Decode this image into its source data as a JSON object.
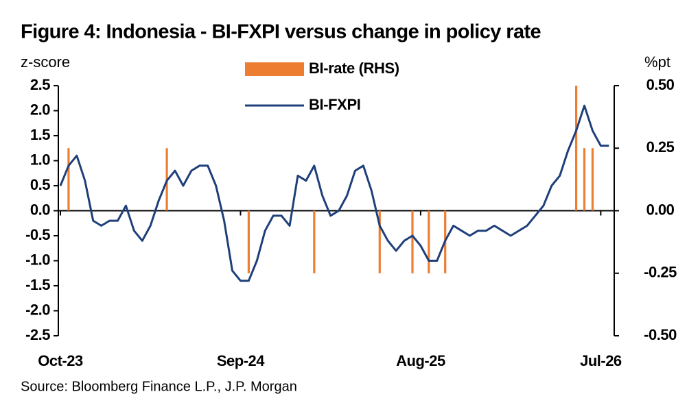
{
  "chart_data": {
    "type": "bar-line",
    "title": "Figure 4: Indonesia - BI-FXPI versus change in policy rate",
    "y_label": "z-score",
    "y2_label": "%pt",
    "source": "Source: Bloomberg Finance L.P., J.P. Morgan",
    "categories": [
      "Oct-23",
      null,
      null,
      null,
      null,
      null,
      null,
      null,
      null,
      null,
      null,
      null,
      null,
      null,
      null,
      null,
      null,
      null,
      null,
      null,
      null,
      null,
      "Sep-24",
      null,
      null,
      null,
      null,
      null,
      null,
      null,
      null,
      null,
      null,
      null,
      null,
      null,
      null,
      null,
      null,
      null,
      null,
      null,
      null,
      null,
      "Aug-25",
      null,
      null,
      null,
      null,
      null,
      null,
      null,
      null,
      null,
      null,
      null,
      null,
      null,
      null,
      null,
      null,
      null,
      null,
      null,
      null,
      null,
      "Jul-26",
      null
    ],
    "series": [
      {
        "name": "BI-rate (RHS)",
        "type": "bar",
        "axis": "y2",
        "color": "#ed7d31",
        "values": [
          null,
          0.25,
          null,
          null,
          null,
          null,
          null,
          null,
          null,
          null,
          null,
          null,
          null,
          0.25,
          null,
          null,
          null,
          null,
          null,
          null,
          null,
          null,
          null,
          -0.25,
          null,
          null,
          null,
          null,
          null,
          null,
          null,
          -0.25,
          null,
          null,
          null,
          null,
          null,
          null,
          null,
          -0.25,
          null,
          null,
          null,
          -0.25,
          null,
          -0.25,
          null,
          -0.25,
          null,
          null,
          null,
          null,
          null,
          null,
          null,
          null,
          null,
          null,
          null,
          null,
          null,
          null,
          null,
          0.5,
          0.25,
          0.25,
          null,
          null
        ]
      },
      {
        "name": "BI-FXPI",
        "type": "line",
        "color": "#1f3f7a",
        "values": [
          0.5,
          0.9,
          1.1,
          0.6,
          -0.2,
          -0.3,
          -0.2,
          -0.2,
          0.1,
          -0.4,
          -0.6,
          -0.3,
          0.2,
          0.6,
          0.8,
          0.5,
          0.8,
          0.9,
          0.9,
          0.5,
          -0.2,
          -1.2,
          -1.4,
          -1.4,
          -1.0,
          -0.4,
          -0.1,
          -0.1,
          -0.3,
          0.7,
          0.6,
          0.9,
          0.3,
          -0.1,
          0.0,
          0.3,
          0.8,
          0.9,
          0.4,
          -0.3,
          -0.6,
          -0.8,
          -0.6,
          -0.5,
          -0.7,
          -1.0,
          -1.0,
          -0.6,
          -0.3,
          -0.4,
          -0.5,
          -0.4,
          -0.4,
          -0.3,
          -0.4,
          -0.5,
          -0.4,
          -0.3,
          -0.1,
          0.1,
          0.5,
          0.7,
          1.2,
          1.6,
          2.1,
          1.6,
          1.3,
          1.3
        ]
      }
    ],
    "ylim": [
      -2.5,
      2.5
    ],
    "yticks": [
      2.5,
      {
        "value": 2.0,
        "label": "2.0"
      },
      1.5,
      {
        "value": 1.0,
        "label": "1.0"
      },
      0.5,
      {
        "value": 0.0,
        "label": "0.0"
      },
      -0.5,
      {
        "value": -1.0,
        "label": "-1.0"
      },
      -1.5,
      {
        "value": -2.0,
        "label": "-2.0"
      },
      -2.5
    ],
    "y2lim": [
      -0.5,
      0.5
    ],
    "y2ticks": [
      {
        "value": 0.5,
        "label": "0.50"
      },
      {
        "value": 0.25,
        "label": "0.25"
      },
      {
        "value": 0.0,
        "label": "0.00"
      },
      {
        "value": -0.25,
        "label": "-0.25"
      },
      {
        "value": -0.5,
        "label": "-0.50"
      }
    ]
  }
}
